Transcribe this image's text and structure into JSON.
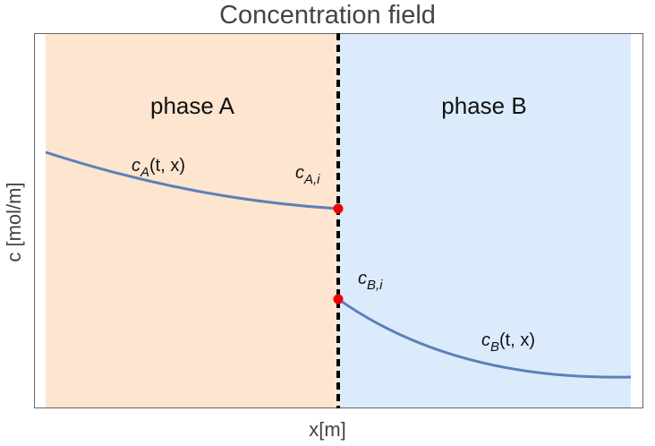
{
  "title": "Concentration field",
  "xlabel": "x[m]",
  "ylabel": "c [mol/m]",
  "regions": {
    "a": {
      "label": "phase A",
      "color": "#fde5cf"
    },
    "b": {
      "label": "phase B",
      "color": "#dcebfc"
    }
  },
  "curves": {
    "a": {
      "sym": "c",
      "sub": "A",
      "args": "(t, x)"
    },
    "b": {
      "sym": "c",
      "sub": "B",
      "args": "(t, x)"
    }
  },
  "interface_points": {
    "a": {
      "sym": "c",
      "sub": "A,i"
    },
    "b": {
      "sym": "c",
      "sub": "B,i"
    }
  },
  "colors": {
    "curve": "#5b80b9",
    "point": "#ee0000",
    "interface": "#000000",
    "frame": "#666666"
  }
}
